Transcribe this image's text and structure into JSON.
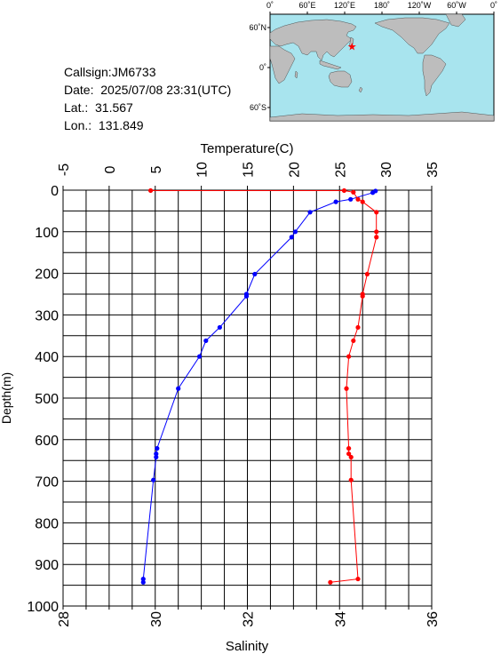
{
  "station": {
    "callsign_line": "Callsign:JM6733",
    "date_line": "Date:  2025/07/08 23:31(UTC)",
    "lat_line": "Lat.:  31.567",
    "lon_line": "Lon.:  131.849"
  },
  "map": {
    "lon_labels": [
      "0˚",
      "60˚E",
      "120˚E",
      "180˚",
      "120˚W",
      "60˚W",
      "0˚"
    ],
    "lat_labels": [
      "60˚N",
      "0˚",
      "60˚S"
    ],
    "ocean_color": "#a8e4ee",
    "land_color": "#bdbdbd",
    "marker_color": "#ff0000",
    "marker": {
      "lon": 131.849,
      "lat": 31.567
    }
  },
  "chart_data": {
    "type": "line",
    "top_axis_title": "Temperature(C)",
    "bottom_axis_title": "Salinity",
    "ylabel": "Depth(m)",
    "temperature_ticks": [
      "-5",
      "0",
      "5",
      "10",
      "15",
      "20",
      "25",
      "30",
      "35"
    ],
    "salinity_ticks": [
      "28",
      "30",
      "32",
      "34",
      "36"
    ],
    "depth_ticks": [
      "0",
      "100",
      "200",
      "300",
      "400",
      "500",
      "600",
      "700",
      "800",
      "900",
      "1000"
    ],
    "temperature_range": [
      -5,
      35
    ],
    "salinity_range": [
      28,
      36
    ],
    "depth_range": [
      0,
      1000
    ],
    "grid": true,
    "series": [
      {
        "quantity": "temperature",
        "color": "#0000ff",
        "points": [
          {
            "value": 28.9,
            "depth": 2
          },
          {
            "value": 28.6,
            "depth": 6
          },
          {
            "value": 26.2,
            "depth": 22
          },
          {
            "value": 24.6,
            "depth": 28
          },
          {
            "value": 21.8,
            "depth": 53
          },
          {
            "value": 20.2,
            "depth": 100
          },
          {
            "value": 19.8,
            "depth": 113
          },
          {
            "value": 15.8,
            "depth": 202
          },
          {
            "value": 14.9,
            "depth": 250
          },
          {
            "value": 14.9,
            "depth": 255
          },
          {
            "value": 12.0,
            "depth": 330
          },
          {
            "value": 10.5,
            "depth": 362
          },
          {
            "value": 9.8,
            "depth": 400
          },
          {
            "value": 7.5,
            "depth": 477
          },
          {
            "value": 5.2,
            "depth": 621
          },
          {
            "value": 5.1,
            "depth": 634
          },
          {
            "value": 5.1,
            "depth": 642
          },
          {
            "value": 4.8,
            "depth": 697
          },
          {
            "value": 3.7,
            "depth": 935
          },
          {
            "value": 3.7,
            "depth": 943
          }
        ]
      },
      {
        "quantity": "salinity",
        "color": "#ff0000",
        "points": [
          {
            "value": 29.9,
            "depth": 1
          },
          {
            "value": 34.1,
            "depth": 1
          },
          {
            "value": 34.3,
            "depth": 5
          },
          {
            "value": 34.4,
            "depth": 22
          },
          {
            "value": 34.5,
            "depth": 28
          },
          {
            "value": 34.8,
            "depth": 53
          },
          {
            "value": 34.8,
            "depth": 100
          },
          {
            "value": 34.8,
            "depth": 113
          },
          {
            "value": 34.6,
            "depth": 202
          },
          {
            "value": 34.5,
            "depth": 250
          },
          {
            "value": 34.5,
            "depth": 255
          },
          {
            "value": 34.4,
            "depth": 330
          },
          {
            "value": 34.3,
            "depth": 362
          },
          {
            "value": 34.2,
            "depth": 400
          },
          {
            "value": 34.15,
            "depth": 477
          },
          {
            "value": 34.2,
            "depth": 621
          },
          {
            "value": 34.2,
            "depth": 634
          },
          {
            "value": 34.25,
            "depth": 642
          },
          {
            "value": 34.25,
            "depth": 697
          },
          {
            "value": 34.4,
            "depth": 935
          },
          {
            "value": 33.8,
            "depth": 943
          }
        ]
      }
    ]
  }
}
